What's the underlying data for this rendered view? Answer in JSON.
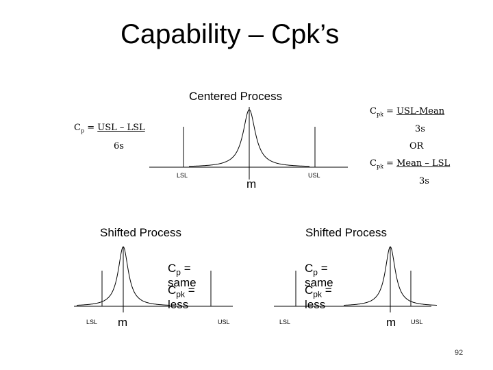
{
  "slide": {
    "title": "Capability – Cpk’s",
    "page_number": "92"
  },
  "centered": {
    "heading": "Centered Process",
    "lsl": "LSL",
    "usl": "USL",
    "mean": "m",
    "cp_prefix": "C",
    "cp_sub": "p",
    "cp_eq": " = ",
    "cp_numerator": "USL – LSL",
    "cp_denominator": "6s",
    "cpk1_prefix": "C",
    "cpk1_sub": "pk",
    "cpk1_eq": " = ",
    "cpk1_numerator": "USL-Mean",
    "cpk1_denominator": "3s",
    "or": "OR",
    "cpk2_prefix": "C",
    "cpk2_sub": "pk",
    "cpk2_eq": " = ",
    "cpk2_numerator": "Mean – LSL",
    "cpk2_denominator": "3s"
  },
  "shifted_left": {
    "heading": "Shifted Process",
    "lsl": "LSL",
    "usl": "USL",
    "mean": "m",
    "cp_c": "C",
    "cp_sub": "p",
    "cp_rest": " =",
    "cp_value": "same",
    "cpk_c": "C",
    "cpk_sub": "pk",
    "cpk_rest": " =",
    "cpk_value": "less"
  },
  "shifted_right": {
    "heading": "Shifted Process",
    "lsl": "LSL",
    "usl": "USL",
    "mean": "m",
    "cp_c": "C",
    "cp_sub": "p",
    "cp_rest": " =",
    "cp_value": "same",
    "cpk_c": "C",
    "cpk_sub": "pk",
    "cpk_rest": " =",
    "cpk_value": "less"
  }
}
